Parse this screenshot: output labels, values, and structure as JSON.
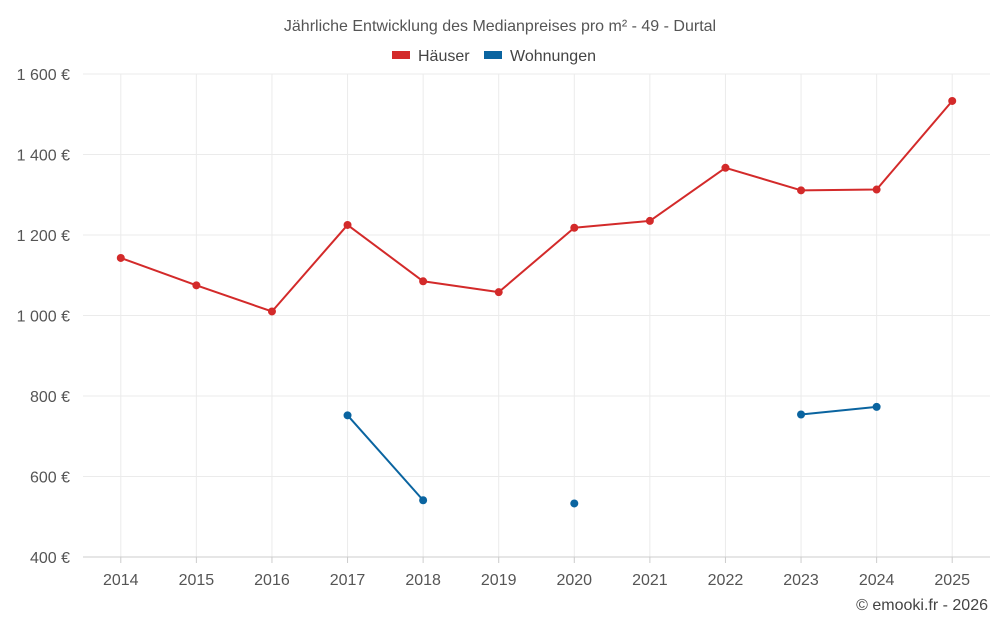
{
  "chart_data": {
    "type": "line",
    "title": "Jährliche Entwicklung des Medianpreises pro m² - 49 - Durtal",
    "categories": [
      "2014",
      "2015",
      "2016",
      "2017",
      "2018",
      "2019",
      "2020",
      "2021",
      "2022",
      "2023",
      "2024",
      "2025"
    ],
    "y_ticks": [
      "400 €",
      "600 €",
      "800 €",
      "1 000 €",
      "1 200 €",
      "1 400 €",
      "1 600 €"
    ],
    "y_tick_values": [
      400,
      600,
      800,
      1000,
      1200,
      1400,
      1600
    ],
    "ylim": [
      400,
      1600
    ],
    "xlabel": "",
    "ylabel": "",
    "grid": true,
    "legend_position": "top-center",
    "series": [
      {
        "name": "Häuser",
        "color": "#d32a2a",
        "values": [
          1143,
          1075,
          1010,
          1225,
          1085,
          1058,
          1218,
          1235,
          1367,
          1311,
          1313,
          1533
        ]
      },
      {
        "name": "Wohnungen",
        "color": "#0a64a0",
        "values": [
          null,
          null,
          null,
          752,
          541,
          null,
          533,
          null,
          null,
          754,
          773,
          null
        ]
      }
    ]
  },
  "credit": "© emooki.fr - 2026"
}
